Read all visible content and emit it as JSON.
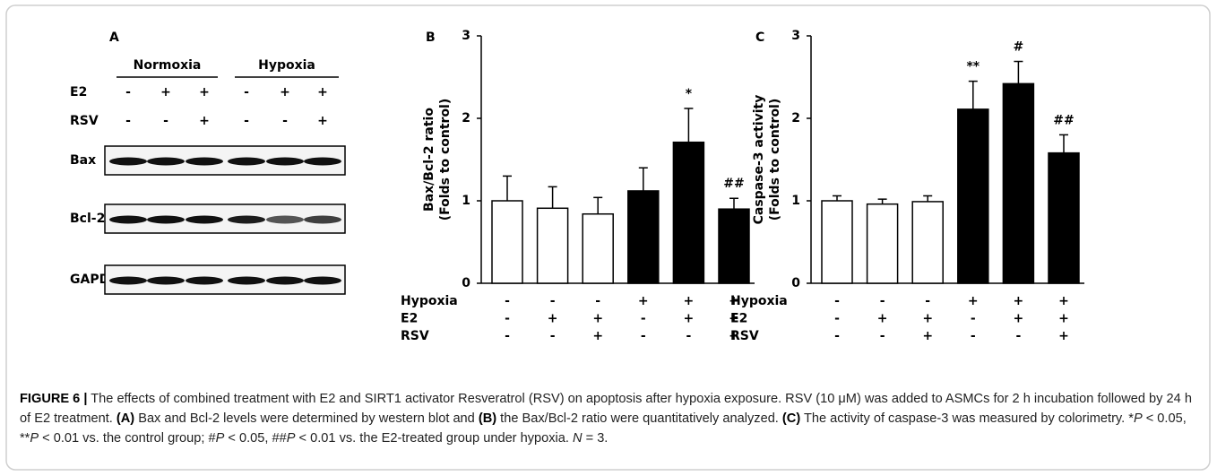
{
  "blot_panel": {
    "label": "A",
    "groups": [
      "Normoxia",
      "Hypoxia"
    ],
    "conditions": [
      {
        "name": "E2",
        "values": [
          "-",
          "+",
          "+",
          "-",
          "+",
          "+"
        ]
      },
      {
        "name": "RSV",
        "values": [
          "-",
          "-",
          "+",
          "-",
          "-",
          "+"
        ]
      }
    ],
    "blots": [
      "Bax",
      "Bcl-2",
      "GAPDH"
    ]
  },
  "chart_data": [
    {
      "type": "bar",
      "panel": "B",
      "ylabel": [
        "Bax/Bcl-2 ratio",
        "(Folds to control)"
      ],
      "ylim": [
        0,
        3
      ],
      "yticks": [
        0,
        1,
        2,
        3
      ],
      "values": [
        1.0,
        0.91,
        0.84,
        1.12,
        1.71,
        0.9
      ],
      "errors": [
        0.3,
        0.26,
        0.2,
        0.28,
        0.41,
        0.13
      ],
      "colors": [
        "#ffffff",
        "#ffffff",
        "#ffffff",
        "#000000",
        "#000000",
        "#000000"
      ],
      "annotations": [
        null,
        null,
        null,
        null,
        "*",
        "##"
      ],
      "conditions": [
        {
          "name": "Hypoxia",
          "values": [
            "-",
            "-",
            "-",
            "+",
            "+",
            "+"
          ]
        },
        {
          "name": "E2",
          "values": [
            "-",
            "+",
            "+",
            "-",
            "+",
            "+"
          ]
        },
        {
          "name": "RSV",
          "values": [
            "-",
            "-",
            "+",
            "-",
            "-",
            "+"
          ]
        }
      ]
    },
    {
      "type": "bar",
      "panel": "C",
      "ylabel": [
        "Caspase-3 activity",
        "(Folds to control)"
      ],
      "ylim": [
        0,
        3
      ],
      "yticks": [
        0,
        1,
        2,
        3
      ],
      "values": [
        1.0,
        0.96,
        0.99,
        2.11,
        2.42,
        1.58
      ],
      "errors": [
        0.06,
        0.06,
        0.07,
        0.34,
        0.27,
        0.22
      ],
      "colors": [
        "#ffffff",
        "#ffffff",
        "#ffffff",
        "#000000",
        "#000000",
        "#000000"
      ],
      "annotations": [
        null,
        null,
        null,
        "**",
        "#",
        "##"
      ],
      "conditions": [
        {
          "name": "Hypoxia",
          "values": [
            "-",
            "-",
            "-",
            "+",
            "+",
            "+"
          ]
        },
        {
          "name": "E2",
          "values": [
            "-",
            "+",
            "+",
            "-",
            "+",
            "+"
          ]
        },
        {
          "name": "RSV",
          "values": [
            "-",
            "-",
            "+",
            "-",
            "-",
            "+"
          ]
        }
      ]
    }
  ],
  "caption": {
    "runs": [
      {
        "text": "FIGURE 6 |",
        "style": "bold"
      },
      {
        "text": " The effects of combined treatment with E2 and SIRT1 activator Resveratrol (RSV) on apoptosis after hypoxia exposure. RSV (10 μM) was added to ASMCs for 2 h incubation followed by 24 h of E2 treatment. "
      },
      {
        "text": "(A)",
        "style": "bold"
      },
      {
        "text": " Bax and Bcl-2 levels were determined by western blot and "
      },
      {
        "text": "(B)",
        "style": "bold"
      },
      {
        "text": " the Bax/Bcl-2 ratio were quantitatively analyzed. "
      },
      {
        "text": "(C)",
        "style": "bold"
      },
      {
        "text": " The activity of caspase-3 was measured by colorimetry. *"
      },
      {
        "text": "P",
        "style": "italic"
      },
      {
        "text": " < 0.05, **"
      },
      {
        "text": "P",
        "style": "italic"
      },
      {
        "text": " < 0.01 vs. the control group; #"
      },
      {
        "text": "P",
        "style": "italic"
      },
      {
        "text": " < 0.05, ##"
      },
      {
        "text": "P",
        "style": "italic"
      },
      {
        "text": " < 0.01 vs. the E2-treated group under hypoxia. "
      },
      {
        "text": "N",
        "style": "italic"
      },
      {
        "text": " = 3."
      }
    ]
  }
}
